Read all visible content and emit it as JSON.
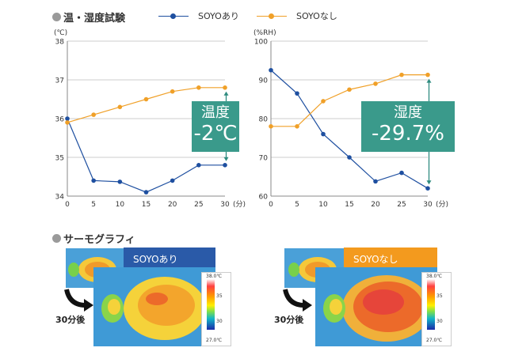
{
  "header": {
    "title": "温・湿度試験"
  },
  "legend": {
    "with": {
      "label": "SOYOあり",
      "color": "#1e4fa0"
    },
    "without": {
      "label": "SOYOなし",
      "color": "#f0a028"
    }
  },
  "chart_data": [
    {
      "type": "line",
      "title": "温度",
      "ylabel": "(℃)",
      "xlabel": "(分)",
      "x": [
        0,
        5,
        10,
        15,
        20,
        25,
        30
      ],
      "xlim": [
        0,
        30
      ],
      "ylim": [
        34,
        38
      ],
      "yticks": [
        34,
        35,
        36,
        37,
        38
      ],
      "series": [
        {
          "name": "SOYOあり",
          "values": [
            36.0,
            34.4,
            34.37,
            34.1,
            34.4,
            34.8,
            34.8
          ]
        },
        {
          "name": "SOYOなし",
          "values": [
            35.9,
            36.1,
            36.3,
            36.5,
            36.7,
            36.8,
            36.8
          ]
        }
      ],
      "annotation": {
        "label": "温度",
        "value": "-2℃"
      }
    },
    {
      "type": "line",
      "title": "湿度",
      "ylabel": "(%RH)",
      "xlabel": "(分)",
      "x": [
        0,
        5,
        10,
        15,
        20,
        25,
        30
      ],
      "xlim": [
        0,
        30
      ],
      "ylim": [
        60,
        100
      ],
      "yticks": [
        60,
        70,
        80,
        90,
        100
      ],
      "series": [
        {
          "name": "SOYOあり",
          "values": [
            92.5,
            86.5,
            76.0,
            70.0,
            63.8,
            66.0,
            62.0
          ]
        },
        {
          "name": "SOYOなし",
          "values": [
            78.0,
            78.0,
            84.5,
            87.5,
            89.0,
            91.3,
            91.3
          ]
        }
      ],
      "annotation": {
        "label": "湿度",
        "value": "-29.7%"
      }
    }
  ],
  "thermo": {
    "title": "サーモグラフィ",
    "after_label": "30分後",
    "with_label": "SOYOあり",
    "without_label": "SOYOなし",
    "scale_max": "38.0℃",
    "scale_min": "27.0℃",
    "scale_tick_a": "35",
    "scale_tick_b": "30",
    "with_color": "#2a5aa8",
    "without_color": "#f39a1e"
  }
}
